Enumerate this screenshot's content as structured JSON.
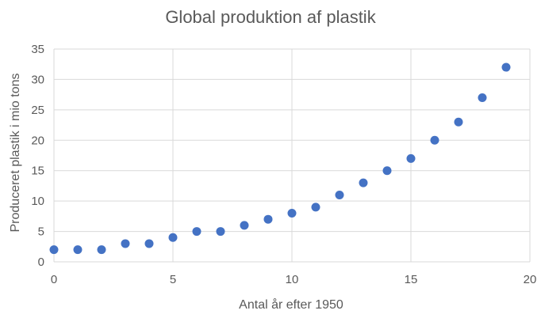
{
  "chart_data": {
    "type": "scatter",
    "title": "Global produktion af plastik",
    "xlabel": "Antal år efter 1950",
    "ylabel": "Produceret plastik i mio tons",
    "xlim": [
      0,
      20
    ],
    "ylim": [
      0,
      35
    ],
    "xticks": [
      "0",
      "5",
      "10",
      "15",
      "20"
    ],
    "yticks": [
      "0",
      "5",
      "10",
      "15",
      "20",
      "25",
      "30",
      "35"
    ],
    "grid": true,
    "legend": "none",
    "marker_color": "#4472c4",
    "series": [
      {
        "x": [
          0,
          1,
          2,
          3,
          4,
          5,
          6,
          7,
          8,
          9,
          10,
          11,
          12,
          13,
          14,
          15,
          16,
          17,
          18,
          19
        ],
        "y": [
          2,
          2,
          2,
          3,
          3,
          4,
          5,
          5,
          6,
          7,
          8,
          9,
          11,
          13,
          15,
          17,
          20,
          23,
          27,
          32
        ]
      }
    ]
  }
}
